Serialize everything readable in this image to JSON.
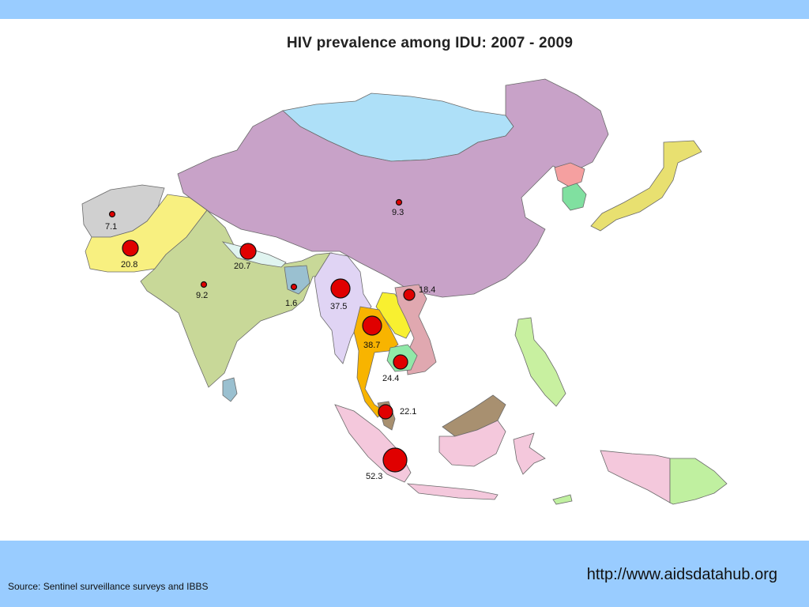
{
  "title": "HIV prevalence among IDU: 2007 - 2009",
  "footer": {
    "url": "http://www.aidsdatahub.org",
    "source": "Source: Sentinel surveillance surveys and IBBS"
  },
  "colors": {
    "band": "#99ccff",
    "marker": "#e00000",
    "china": "#c8a2c8",
    "mongolia": "#aee0f8",
    "india": "#c8d898",
    "pakistan": "#f8f080",
    "afghanistan": "#d0d0d0",
    "myanmar": "#e0d4f4",
    "thailand": "#f8b400",
    "indonesia": "#f4c8dc",
    "papua_new_guinea": "#c0f0a0"
  },
  "markers": [
    {
      "label": "7.1",
      "value": 7.1
    },
    {
      "label": "20.8",
      "value": 20.8
    },
    {
      "label": "20.7",
      "value": 20.7
    },
    {
      "label": "9.2",
      "value": 9.2
    },
    {
      "label": "1.6",
      "value": 1.6
    },
    {
      "label": "9.3",
      "value": 9.3
    },
    {
      "label": "37.5",
      "value": 37.5
    },
    {
      "label": "18.4",
      "value": 18.4
    },
    {
      "label": "38.7",
      "value": 38.7
    },
    {
      "label": "24.4",
      "value": 24.4
    },
    {
      "label": "22.1",
      "value": 22.1
    },
    {
      "label": "52.3",
      "value": 52.3
    }
  ]
}
